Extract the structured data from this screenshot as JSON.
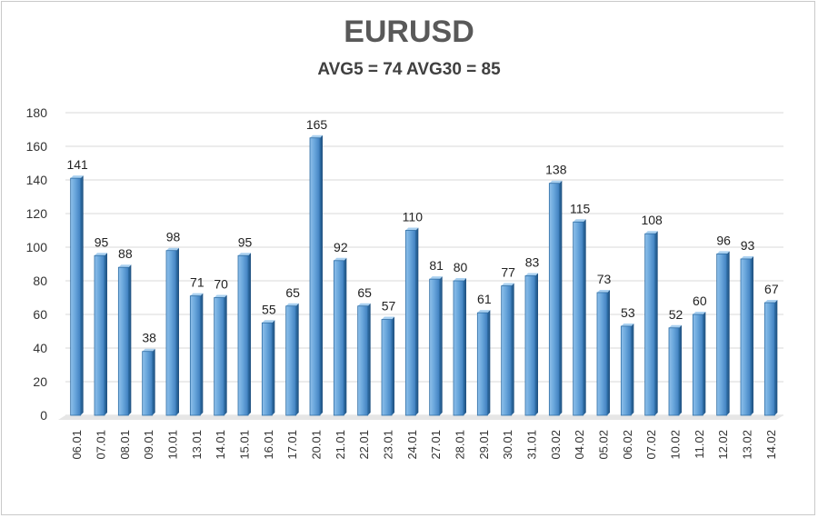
{
  "chart_data": {
    "type": "bar",
    "title": "EURUSD",
    "subtitle": "AVG5 = 74 AVG30 = 85",
    "categories": [
      "06.01",
      "07.01",
      "08.01",
      "09.01",
      "10.01",
      "13.01",
      "14.01",
      "15.01",
      "16.01",
      "17.01",
      "20.01",
      "21.01",
      "22.01",
      "23.01",
      "24.01",
      "27.01",
      "28.01",
      "29.01",
      "30.01",
      "31.01",
      "03.02",
      "04.02",
      "05.02",
      "06.02",
      "07.02",
      "10.02",
      "11.02",
      "12.02",
      "13.02",
      "14.02"
    ],
    "values": [
      141,
      95,
      88,
      38,
      98,
      71,
      70,
      95,
      55,
      65,
      165,
      92,
      65,
      57,
      110,
      81,
      80,
      61,
      77,
      83,
      138,
      115,
      73,
      53,
      108,
      52,
      60,
      96,
      93,
      67
    ],
    "ylim": [
      0,
      180
    ],
    "yticks": [
      0,
      20,
      40,
      60,
      80,
      100,
      120,
      140,
      160,
      180
    ],
    "grid": true,
    "legend": "none",
    "bar_color": "#6aa7dc",
    "bar_edge_color": "#2f6ea5"
  }
}
